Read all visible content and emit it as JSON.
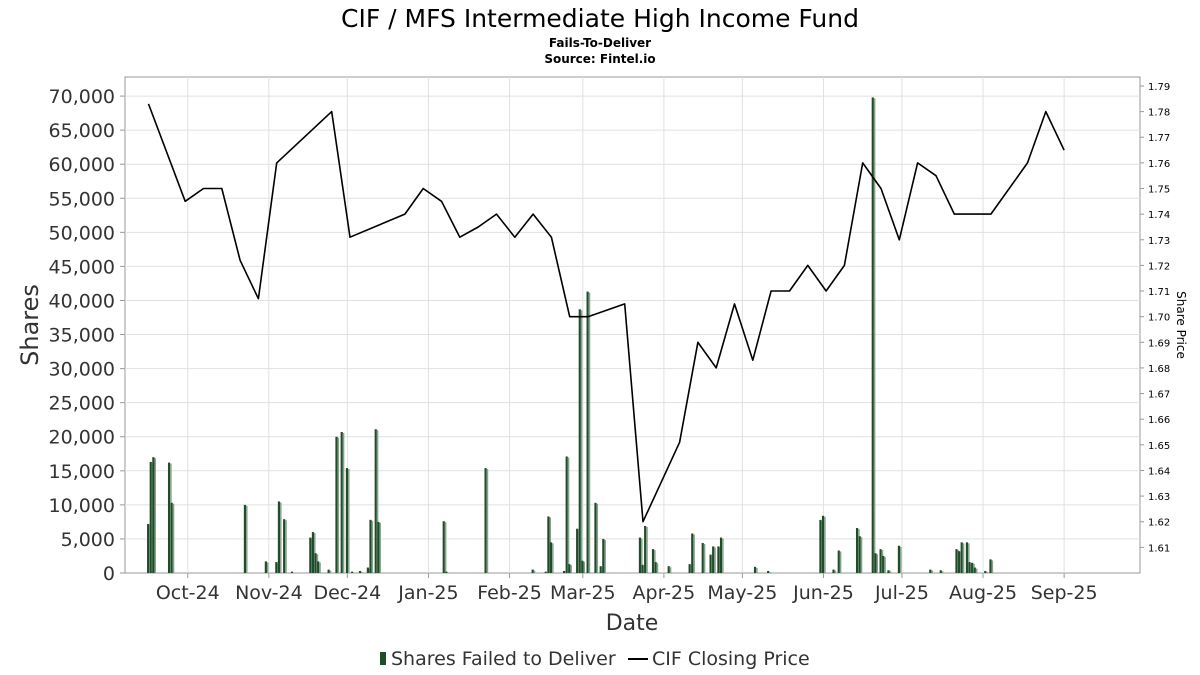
{
  "chart_data": {
    "type": "bar",
    "title": "CIF / MFS Intermediate High Income Fund",
    "subtitle": "Fails-To-Deliver",
    "source": "Source: Fintel.io",
    "xlabel": "Date",
    "ylabel": "Shares",
    "y2label": "Share Price",
    "ylim": [
      0,
      72800
    ],
    "y2lim": [
      1.6,
      1.7935
    ],
    "y_ticks": [
      "0",
      "5,000",
      "10,000",
      "15,000",
      "20,000",
      "25,000",
      "30,000",
      "35,000",
      "40,000",
      "45,000",
      "50,000",
      "55,000",
      "60,000",
      "65,000",
      "70,000"
    ],
    "y2_ticks": [
      "1.61",
      "1.62",
      "1.63",
      "1.64",
      "1.65",
      "1.66",
      "1.67",
      "1.68",
      "1.69",
      "1.70",
      "1.71",
      "1.72",
      "1.73",
      "1.74",
      "1.75",
      "1.76",
      "1.77",
      "1.78",
      "1.79"
    ],
    "x_ticks": [
      "Oct-24",
      "Nov-24",
      "Dec-24",
      "Jan-25",
      "Feb-25",
      "Mar-25",
      "Apr-25",
      "May-25",
      "Jun-25",
      "Jul-25",
      "Aug-25",
      "Sep-25"
    ],
    "x_range": [
      "2024-09-07",
      "2025-09-30"
    ],
    "grid": true,
    "legend_position": "bottom-center",
    "series": [
      {
        "name": "Shares Failed to Deliver",
        "kind": "bar",
        "color": "#1f4d2a",
        "points": [
          {
            "date": "2024-09-16",
            "value": 7200
          },
          {
            "date": "2024-09-17",
            "value": 16300
          },
          {
            "date": "2024-09-18",
            "value": 17000
          },
          {
            "date": "2024-09-24",
            "value": 16200
          },
          {
            "date": "2024-09-25",
            "value": 10300
          },
          {
            "date": "2024-10-23",
            "value": 10000
          },
          {
            "date": "2024-10-31",
            "value": 1700
          },
          {
            "date": "2024-11-04",
            "value": 1600
          },
          {
            "date": "2024-11-05",
            "value": 10500
          },
          {
            "date": "2024-11-07",
            "value": 7900
          },
          {
            "date": "2024-11-10",
            "value": 200
          },
          {
            "date": "2024-11-17",
            "value": 5200
          },
          {
            "date": "2024-11-18",
            "value": 6000
          },
          {
            "date": "2024-11-19",
            "value": 2900
          },
          {
            "date": "2024-11-20",
            "value": 1700
          },
          {
            "date": "2024-11-24",
            "value": 500
          },
          {
            "date": "2024-11-27",
            "value": 20000
          },
          {
            "date": "2024-11-29",
            "value": 20700
          },
          {
            "date": "2024-12-01",
            "value": 15400
          },
          {
            "date": "2024-12-03",
            "value": 200
          },
          {
            "date": "2024-12-06",
            "value": 300
          },
          {
            "date": "2024-12-09",
            "value": 800
          },
          {
            "date": "2024-12-10",
            "value": 7800
          },
          {
            "date": "2024-12-12",
            "value": 21100
          },
          {
            "date": "2024-12-13",
            "value": 7500
          },
          {
            "date": "2025-01-07",
            "value": 7600
          },
          {
            "date": "2025-01-08",
            "value": 200
          },
          {
            "date": "2025-01-23",
            "value": 15400
          },
          {
            "date": "2025-02-10",
            "value": 500
          },
          {
            "date": "2025-02-15",
            "value": 200
          },
          {
            "date": "2025-02-16",
            "value": 8300
          },
          {
            "date": "2025-02-17",
            "value": 4500
          },
          {
            "date": "2025-02-22",
            "value": 300
          },
          {
            "date": "2025-02-23",
            "value": 17100
          },
          {
            "date": "2025-02-24",
            "value": 1300
          },
          {
            "date": "2025-02-27",
            "value": 6500
          },
          {
            "date": "2025-02-28",
            "value": 38700
          },
          {
            "date": "2025-03-01",
            "value": 1800
          },
          {
            "date": "2025-03-03",
            "value": 41300
          },
          {
            "date": "2025-03-06",
            "value": 10300
          },
          {
            "date": "2025-03-08",
            "value": 1000
          },
          {
            "date": "2025-03-09",
            "value": 5000
          },
          {
            "date": "2025-03-23",
            "value": 5200
          },
          {
            "date": "2025-03-24",
            "value": 1200
          },
          {
            "date": "2025-03-25",
            "value": 6900
          },
          {
            "date": "2025-03-28",
            "value": 3500
          },
          {
            "date": "2025-03-29",
            "value": 1600
          },
          {
            "date": "2025-04-03",
            "value": 1000
          },
          {
            "date": "2025-04-11",
            "value": 1300
          },
          {
            "date": "2025-04-12",
            "value": 5800
          },
          {
            "date": "2025-04-16",
            "value": 4400
          },
          {
            "date": "2025-04-19",
            "value": 2700
          },
          {
            "date": "2025-04-20",
            "value": 3900
          },
          {
            "date": "2025-04-22",
            "value": 3900
          },
          {
            "date": "2025-04-23",
            "value": 5200
          },
          {
            "date": "2025-05-06",
            "value": 900
          },
          {
            "date": "2025-05-11",
            "value": 300
          },
          {
            "date": "2025-05-31",
            "value": 7800
          },
          {
            "date": "2025-06-01",
            "value": 8400
          },
          {
            "date": "2025-06-05",
            "value": 500
          },
          {
            "date": "2025-06-07",
            "value": 3300
          },
          {
            "date": "2025-06-14",
            "value": 6600
          },
          {
            "date": "2025-06-15",
            "value": 5400
          },
          {
            "date": "2025-06-20",
            "value": 69800
          },
          {
            "date": "2025-06-21",
            "value": 2900
          },
          {
            "date": "2025-06-23",
            "value": 3500
          },
          {
            "date": "2025-06-24",
            "value": 2500
          },
          {
            "date": "2025-06-26",
            "value": 400
          },
          {
            "date": "2025-06-30",
            "value": 4000
          },
          {
            "date": "2025-07-12",
            "value": 500
          },
          {
            "date": "2025-07-16",
            "value": 400
          },
          {
            "date": "2025-07-22",
            "value": 3500
          },
          {
            "date": "2025-07-23",
            "value": 3200
          },
          {
            "date": "2025-07-24",
            "value": 4500
          },
          {
            "date": "2025-07-26",
            "value": 4500
          },
          {
            "date": "2025-07-27",
            "value": 1600
          },
          {
            "date": "2025-07-28",
            "value": 1500
          },
          {
            "date": "2025-07-29",
            "value": 800
          },
          {
            "date": "2025-08-02",
            "value": 300
          },
          {
            "date": "2025-08-04",
            "value": 2000
          }
        ]
      },
      {
        "name": "CIF Closing Price",
        "kind": "line",
        "axis": "right",
        "color": "#000000",
        "points": [
          {
            "date": "2024-09-16",
            "value": 1.783
          },
          {
            "date": "2024-09-30",
            "value": 1.745
          },
          {
            "date": "2024-10-07",
            "value": 1.75
          },
          {
            "date": "2024-10-14",
            "value": 1.75
          },
          {
            "date": "2024-10-21",
            "value": 1.722
          },
          {
            "date": "2024-10-28",
            "value": 1.707
          },
          {
            "date": "2024-11-04",
            "value": 1.76
          },
          {
            "date": "2024-11-25",
            "value": 1.78
          },
          {
            "date": "2024-12-02",
            "value": 1.731
          },
          {
            "date": "2024-12-23",
            "value": 1.74
          },
          {
            "date": "2024-12-30",
            "value": 1.75
          },
          {
            "date": "2025-01-06",
            "value": 1.745
          },
          {
            "date": "2025-01-13",
            "value": 1.731
          },
          {
            "date": "2025-01-20",
            "value": 1.735
          },
          {
            "date": "2025-01-27",
            "value": 1.74
          },
          {
            "date": "2025-02-03",
            "value": 1.731
          },
          {
            "date": "2025-02-10",
            "value": 1.74
          },
          {
            "date": "2025-02-17",
            "value": 1.731
          },
          {
            "date": "2025-02-24",
            "value": 1.7
          },
          {
            "date": "2025-03-03",
            "value": 1.7
          },
          {
            "date": "2025-03-17",
            "value": 1.705
          },
          {
            "date": "2025-03-24",
            "value": 1.62
          },
          {
            "date": "2025-04-07",
            "value": 1.651
          },
          {
            "date": "2025-04-14",
            "value": 1.69
          },
          {
            "date": "2025-04-21",
            "value": 1.68
          },
          {
            "date": "2025-04-28",
            "value": 1.705
          },
          {
            "date": "2025-05-05",
            "value": 1.683
          },
          {
            "date": "2025-05-12",
            "value": 1.71
          },
          {
            "date": "2025-05-19",
            "value": 1.71
          },
          {
            "date": "2025-05-26",
            "value": 1.72
          },
          {
            "date": "2025-06-02",
            "value": 1.71
          },
          {
            "date": "2025-06-09",
            "value": 1.72
          },
          {
            "date": "2025-06-16",
            "value": 1.76
          },
          {
            "date": "2025-06-23",
            "value": 1.75
          },
          {
            "date": "2025-06-30",
            "value": 1.73
          },
          {
            "date": "2025-07-07",
            "value": 1.76
          },
          {
            "date": "2025-07-14",
            "value": 1.755
          },
          {
            "date": "2025-07-21",
            "value": 1.74
          },
          {
            "date": "2025-07-28",
            "value": 1.74
          },
          {
            "date": "2025-08-04",
            "value": 1.74
          },
          {
            "date": "2025-08-18",
            "value": 1.76
          },
          {
            "date": "2025-08-25",
            "value": 1.78
          },
          {
            "date": "2025-09-01",
            "value": 1.765
          }
        ]
      }
    ]
  }
}
